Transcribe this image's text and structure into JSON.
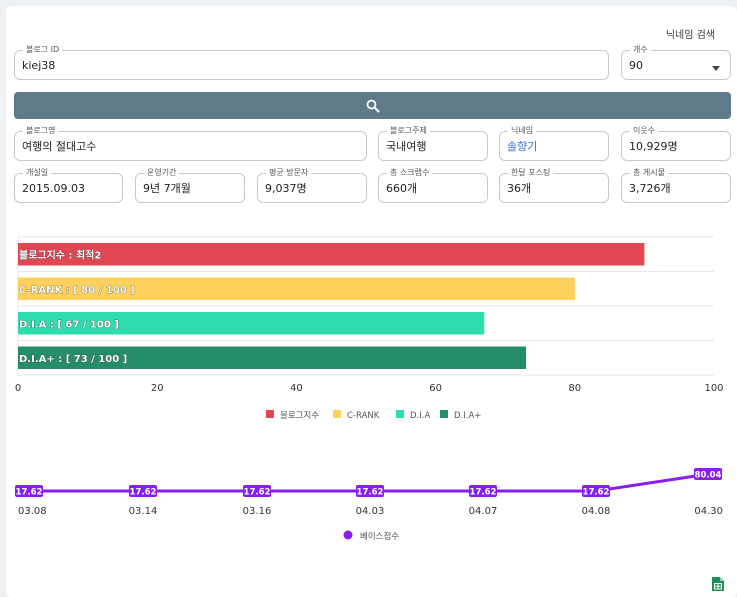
{
  "header": {
    "nickname_search_link": "닉네임 검색"
  },
  "search": {
    "blog_id": {
      "label": "블로그 ID",
      "value": "kiej38"
    },
    "count": {
      "label": "개수",
      "value": "90"
    }
  },
  "info": [
    {
      "label": "블로그명",
      "value": "여행의 절대고수"
    },
    {
      "label": "블로그주제",
      "value": "국내여행"
    },
    {
      "label": "닉네임",
      "value": "솔향기"
    },
    {
      "label": "이웃수",
      "value": "10,929명"
    },
    {
      "label": "개설일",
      "value": "2015.09.03"
    },
    {
      "label": "운영기간",
      "value": "9년 7개월"
    },
    {
      "label": "평균 방문자",
      "value": "9,037명"
    },
    {
      "label": "총 스크랩수",
      "value": "660개"
    },
    {
      "label": "한달 포스팅",
      "value": "36개"
    },
    {
      "label": "총 게시물",
      "value": "3,726개"
    }
  ],
  "chart_data": [
    {
      "type": "bar",
      "orientation": "horizontal",
      "categories": [
        "블로그지수",
        "C-RANK",
        "D.I.A",
        "D.I.A+"
      ],
      "values": [
        90,
        80,
        67,
        73
      ],
      "data_labels": [
        "블로그지수 : 최적2",
        "C-RANK : [ 80 / 100 ]",
        "D.I.A : [ 67 / 100 ]",
        "D.I.A+ : [ 73 / 100 ]"
      ],
      "colors": [
        "#e04752",
        "#fdd15c",
        "#2edcb0",
        "#268d6c"
      ],
      "xlim": [
        0,
        100
      ],
      "xticks": [
        "0",
        "20",
        "40",
        "60",
        "80",
        "100"
      ],
      "legend": [
        "블로그지수",
        "C-RANK",
        "D.I.A",
        "D.I.A+"
      ],
      "legend_position": "bottom"
    },
    {
      "type": "line",
      "x": [
        "03.08",
        "03.14",
        "03.16",
        "04.03",
        "04.07",
        "04.08",
        "04.30"
      ],
      "series": [
        {
          "name": "베이스점수",
          "values": [
            17.62,
            17.62,
            17.62,
            17.62,
            17.62,
            17.62,
            80.04
          ],
          "labels": [
            "17.62",
            "17.62",
            "17.62",
            "17.62",
            "17.62",
            "17.62",
            "80.04"
          ],
          "color": "#8a1ef0"
        }
      ],
      "legend_position": "bottom"
    }
  ],
  "icons": {
    "search": "search-icon",
    "export": "spreadsheet-icon"
  },
  "colors": {
    "search_button": "#5f7a89",
    "accent_blue": "#3a6fd8",
    "export_icon": "#1e8e5a"
  }
}
